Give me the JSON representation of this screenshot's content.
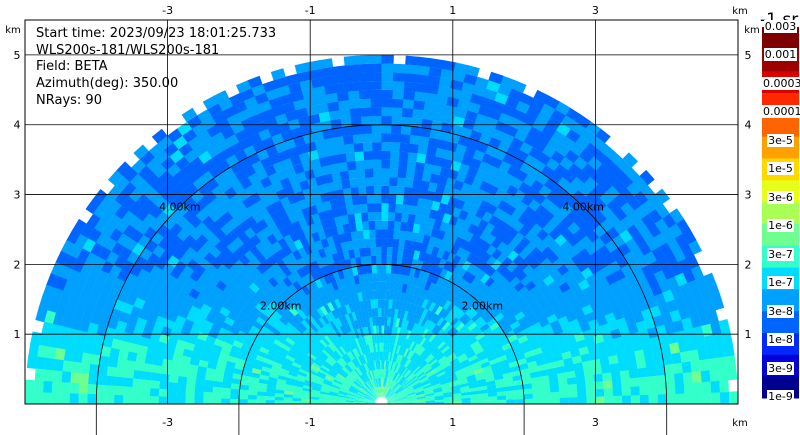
{
  "info": {
    "start_time": "Start time: 2023/09/23 18:01:25.733",
    "radar": "WLS200s-181/WLS200s-181",
    "field": "Field: BETA",
    "azimuth": "Azimuth(deg): 350.00",
    "nrays": "NRays: 90"
  },
  "chart_data": {
    "type": "heatmap",
    "subtype": "RHI range-height display",
    "x_unit": "km",
    "y_unit": "km",
    "xlim": [
      -5.0,
      5.0
    ],
    "ylim": [
      0,
      5.5
    ],
    "x_ticks": [
      -3,
      -1,
      1,
      3
    ],
    "y_ticks": [
      1,
      2,
      3,
      4,
      5
    ],
    "x_tick_labels": [
      "-3",
      "-1",
      "1",
      "3"
    ],
    "y_tick_labels": [
      "1",
      "2",
      "3",
      "4",
      "5"
    ],
    "range_rings": [
      {
        "radius_km": 2.0,
        "label": "2.00km"
      },
      {
        "radius_km": 4.0,
        "label": "4.00km"
      }
    ],
    "max_range_km": 5.0,
    "grid": true,
    "colorbar": {
      "unit_label": "-1 sr",
      "colors": [
        "#00008f",
        "#0000d8",
        "#0028ff",
        "#0064ff",
        "#00a0ff",
        "#00dcfe",
        "#33ffcb",
        "#6eff90",
        "#aaff55",
        "#e5ff19",
        "#ffd800",
        "#ff9f00",
        "#ff6400",
        "#ff2800",
        "#d90000",
        "#9e0000",
        "#7f0000"
      ],
      "labels": [
        "1e-9",
        "3e-9",
        "1e-8",
        "3e-8",
        "1e-7",
        "3e-7",
        "1e-6",
        "3e-6",
        "1e-5",
        "3e-5",
        "0.0001",
        "0.0003",
        "0.001",
        "0.003"
      ]
    }
  }
}
